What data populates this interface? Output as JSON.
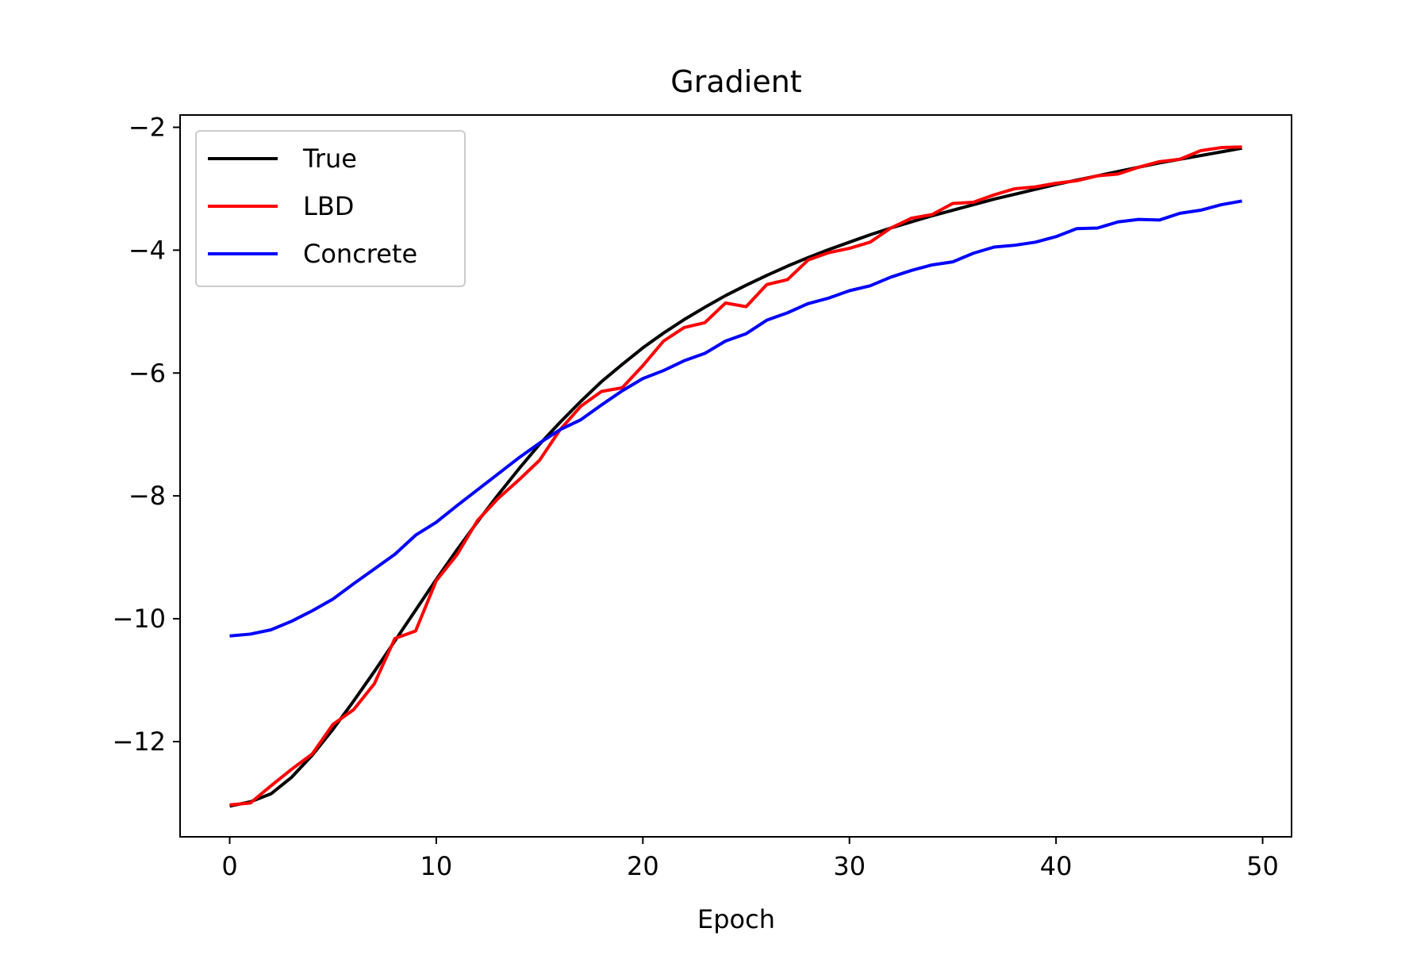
{
  "chart_data": {
    "type": "line",
    "title": "Gradient",
    "xlabel": "Epoch",
    "ylabel": "",
    "xlim": [
      -2.4,
      51.4
    ],
    "ylim": [
      -13.55,
      -1.8
    ],
    "x_ticks": [
      0,
      10,
      20,
      30,
      40,
      50
    ],
    "y_ticks": [
      -12,
      -10,
      -8,
      -6,
      -4,
      -2
    ],
    "x_tick_labels": [
      "0",
      "10",
      "20",
      "30",
      "40",
      "50"
    ],
    "y_tick_labels": [
      "−12",
      "−10",
      "−8",
      "−6",
      "−4",
      "−2"
    ],
    "grid": false,
    "legend_position": "top-left",
    "x": [
      0,
      1,
      2,
      3,
      4,
      5,
      6,
      7,
      8,
      9,
      10,
      11,
      12,
      13,
      14,
      15,
      16,
      17,
      18,
      19,
      20,
      21,
      22,
      23,
      24,
      25,
      26,
      27,
      28,
      29,
      30,
      31,
      32,
      33,
      34,
      35,
      36,
      37,
      38,
      39,
      40,
      41,
      42,
      43,
      44,
      45,
      46,
      47,
      48,
      49
    ],
    "series": [
      {
        "name": "True",
        "color": "#000000",
        "values": [
          -13.05,
          -12.98,
          -12.85,
          -12.58,
          -12.22,
          -11.8,
          -11.34,
          -10.86,
          -10.36,
          -9.86,
          -9.36,
          -8.88,
          -8.42,
          -7.98,
          -7.56,
          -7.16,
          -6.8,
          -6.46,
          -6.14,
          -5.86,
          -5.59,
          -5.35,
          -5.13,
          -4.93,
          -4.74,
          -4.57,
          -4.41,
          -4.26,
          -4.12,
          -3.99,
          -3.87,
          -3.75,
          -3.64,
          -3.54,
          -3.44,
          -3.35,
          -3.26,
          -3.17,
          -3.09,
          -3.01,
          -2.93,
          -2.86,
          -2.79,
          -2.72,
          -2.65,
          -2.58,
          -2.52,
          -2.46,
          -2.4,
          -2.34
        ]
      },
      {
        "name": "LBD",
        "color": "#ff0000",
        "values": [
          -13.03,
          -13.0,
          -12.72,
          -12.45,
          -12.2,
          -11.72,
          -11.48,
          -11.06,
          -10.32,
          -10.2,
          -9.38,
          -8.96,
          -8.4,
          -8.04,
          -7.74,
          -7.42,
          -6.92,
          -6.54,
          -6.3,
          -6.24,
          -5.88,
          -5.48,
          -5.26,
          -5.18,
          -4.86,
          -4.92,
          -4.56,
          -4.48,
          -4.16,
          -4.04,
          -3.97,
          -3.87,
          -3.64,
          -3.48,
          -3.42,
          -3.24,
          -3.22,
          -3.1,
          -3.0,
          -2.97,
          -2.91,
          -2.87,
          -2.79,
          -2.76,
          -2.65,
          -2.56,
          -2.52,
          -2.38,
          -2.33,
          -2.32
        ]
      },
      {
        "name": "Concrete",
        "color": "#0000ff",
        "values": [
          -10.28,
          -10.25,
          -10.18,
          -10.04,
          -9.87,
          -9.68,
          -9.43,
          -9.19,
          -8.95,
          -8.64,
          -8.43,
          -8.16,
          -7.9,
          -7.64,
          -7.38,
          -7.14,
          -6.92,
          -6.76,
          -6.52,
          -6.29,
          -6.09,
          -5.96,
          -5.8,
          -5.68,
          -5.48,
          -5.36,
          -5.14,
          -5.02,
          -4.87,
          -4.78,
          -4.66,
          -4.58,
          -4.44,
          -4.33,
          -4.24,
          -4.19,
          -4.05,
          -3.95,
          -3.92,
          -3.87,
          -3.78,
          -3.65,
          -3.64,
          -3.54,
          -3.5,
          -3.51,
          -3.4,
          -3.35,
          -3.26,
          -3.2
        ]
      }
    ]
  }
}
